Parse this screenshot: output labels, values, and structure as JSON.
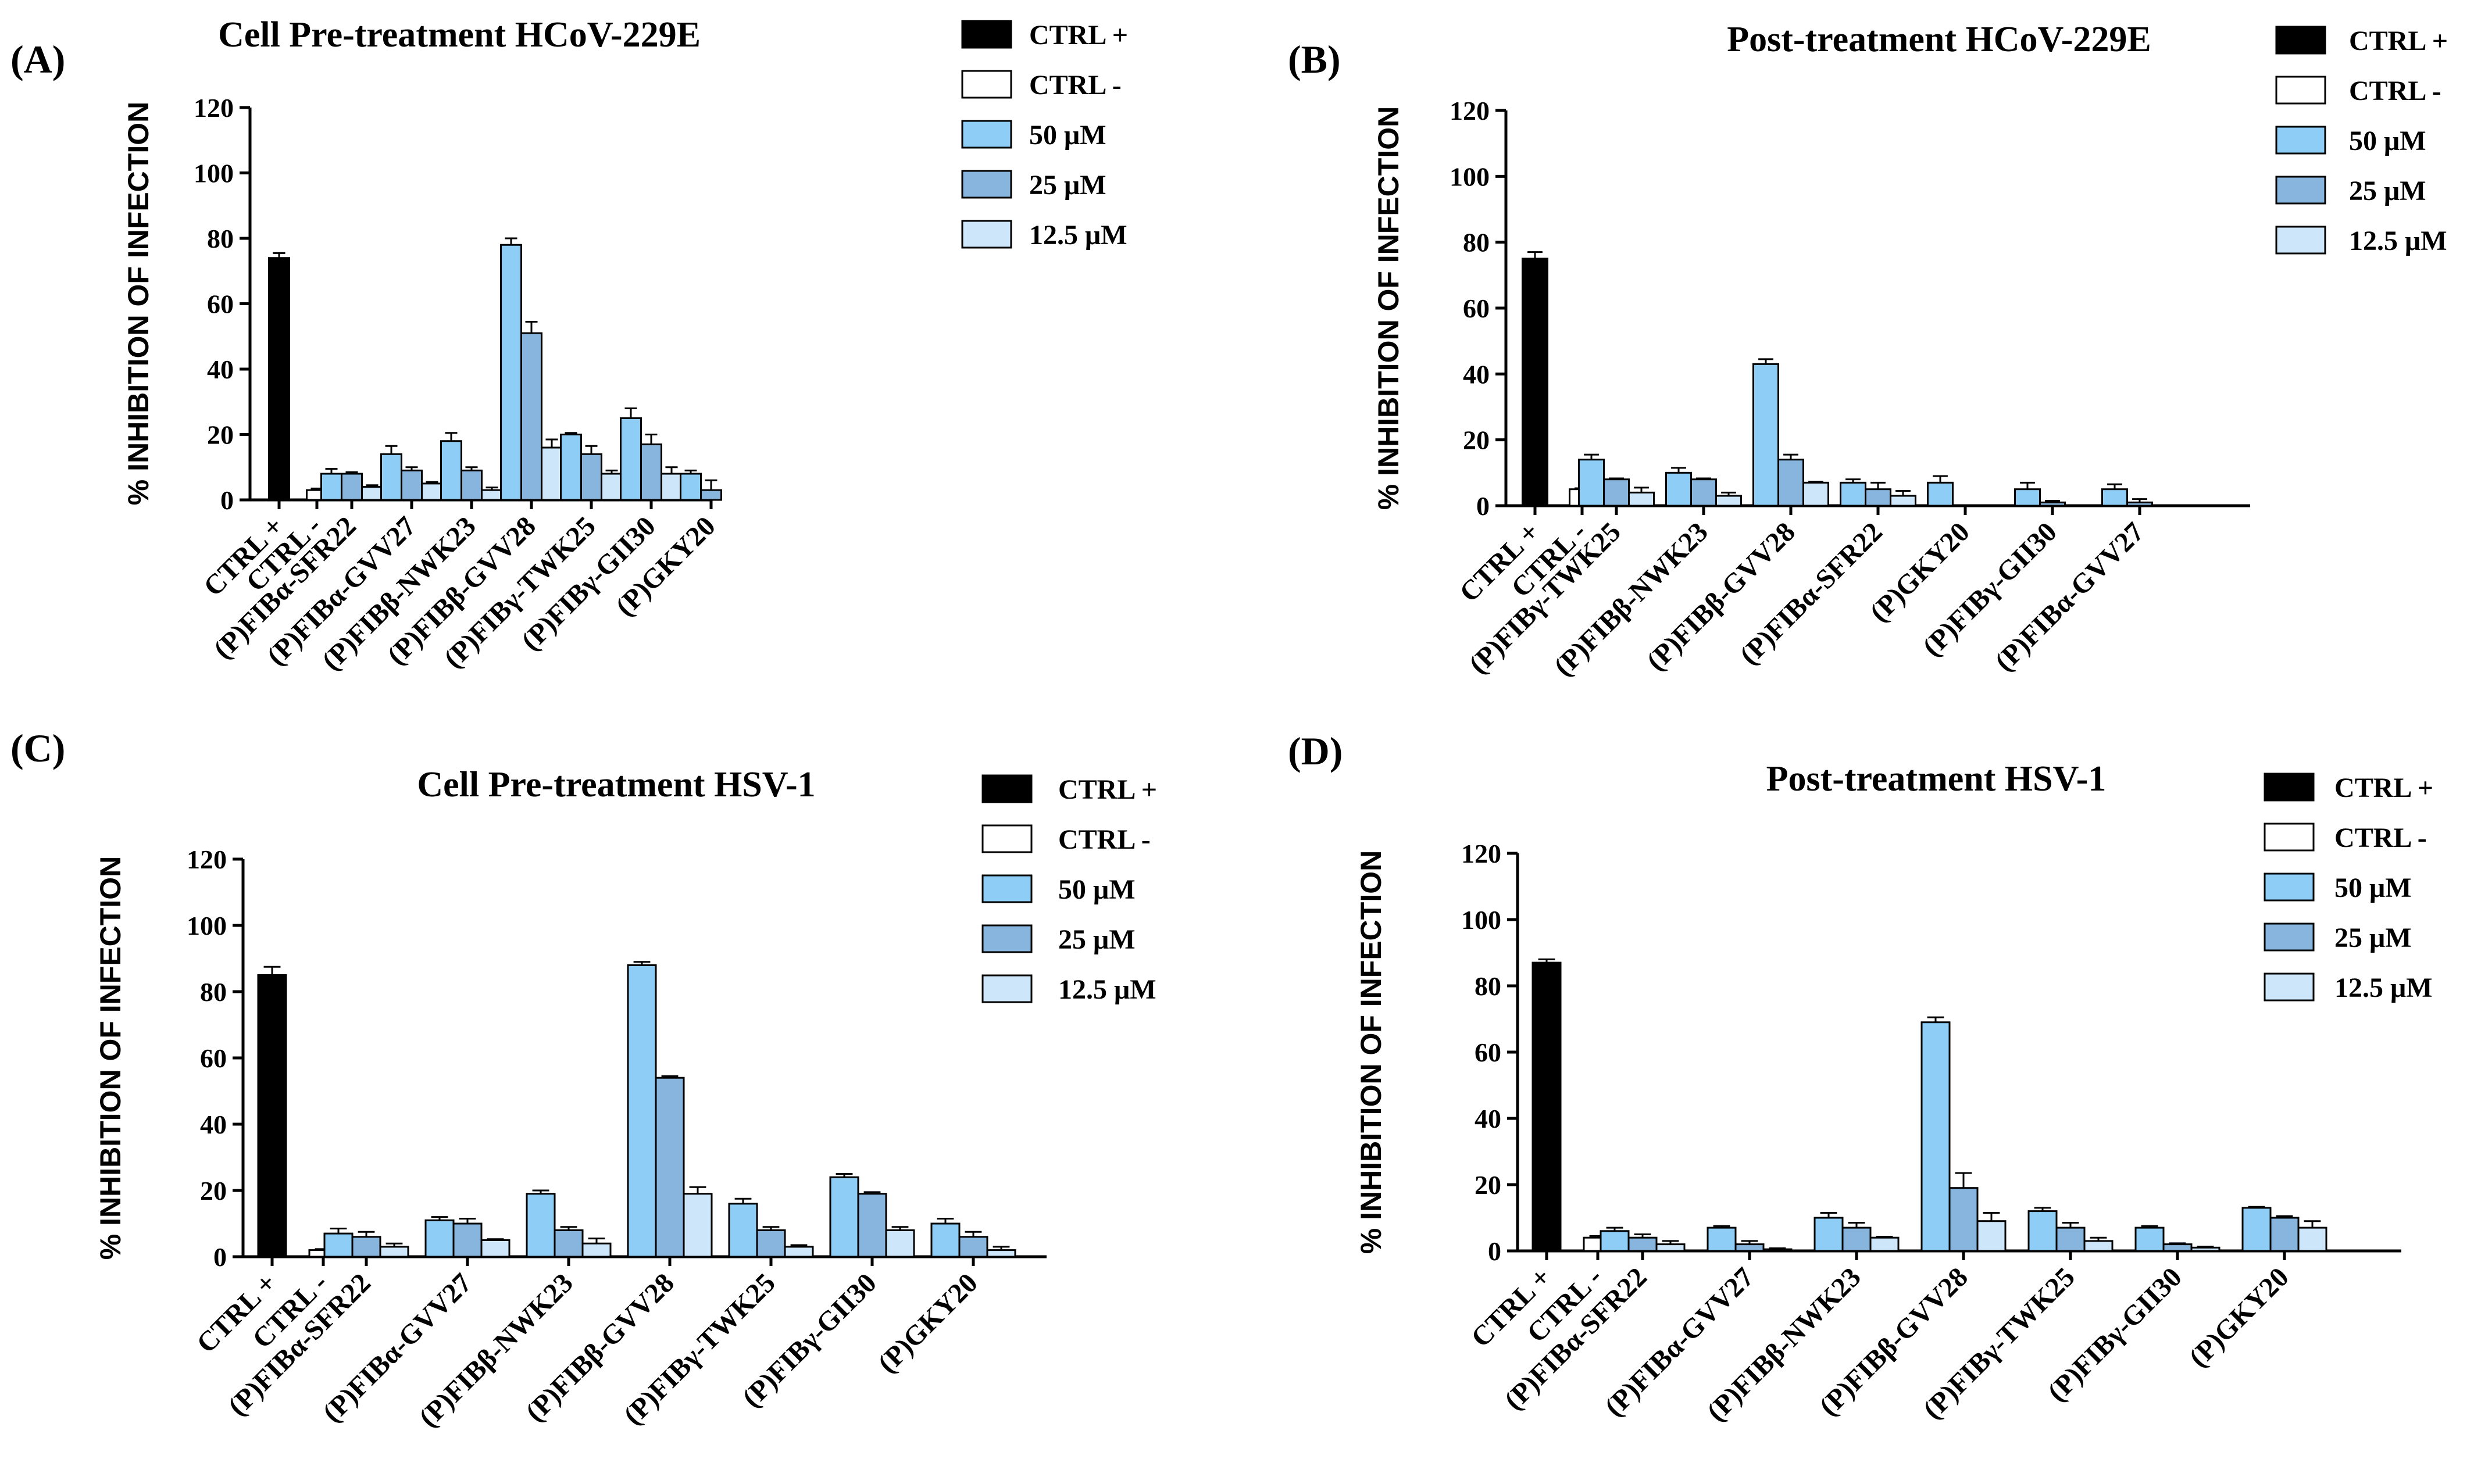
{
  "colors": {
    "ctrl_pos": "#000000",
    "ctrl_neg": "#ffffff",
    "c50": "#8dcdf6",
    "c25": "#87b5dd",
    "c125": "#cde6f9",
    "axis": "#000000"
  },
  "chart_data": [
    {
      "type": "bar",
      "panel": "(A)",
      "title": "Cell Pre-treatment HCoV-229E",
      "ylabel": "% INHIBITION OF INFECTION",
      "ylim": [
        0,
        120
      ],
      "yticks": [
        "0",
        "20",
        "40",
        "60",
        "80",
        "100",
        "120"
      ],
      "legend": [
        "CTRL +",
        "CTRL -",
        "50 μM",
        "25 μM",
        "12.5 μM"
      ],
      "controls": [
        {
          "name": "CTRL +",
          "value": 74,
          "err": 1.5
        },
        {
          "name": "CTRL -",
          "value": 3,
          "err": 0.5
        }
      ],
      "categories": [
        "(P)FIBα-SFR22",
        "(P)FIBα-GVV27",
        "(P)FIBβ-NWK23",
        "(P)FIBβ-GVV28",
        "(P)FIBγ-TWK25",
        "(P)FIBγ-GII30",
        "(P)GKY20"
      ],
      "series": [
        {
          "name": "50 μM",
          "values": [
            8,
            14,
            18,
            78,
            20,
            25,
            8
          ],
          "err": [
            1.5,
            2.5,
            2.5,
            2,
            0.5,
            3,
            1
          ]
        },
        {
          "name": "25 μM",
          "values": [
            8,
            9,
            9,
            51,
            14,
            17,
            3
          ],
          "err": [
            0.5,
            1,
            1,
            3.5,
            2.5,
            3,
            3
          ]
        },
        {
          "name": "12.5 μM",
          "values": [
            4,
            5,
            3,
            16,
            8,
            8,
            0
          ],
          "err": [
            0.5,
            0.5,
            0.8,
            2.5,
            1,
            2,
            0
          ]
        }
      ]
    },
    {
      "type": "bar",
      "panel": "(B)",
      "title": "Post-treatment HCoV-229E",
      "ylabel": "% INHIBITION OF INFECTION",
      "ylim": [
        0,
        120
      ],
      "yticks": [
        "0",
        "20",
        "40",
        "60",
        "80",
        "100",
        "120"
      ],
      "legend": [
        "CTRL +",
        "CTRL -",
        "50 μM",
        "25 μM",
        "12.5 μM"
      ],
      "controls": [
        {
          "name": "CTRL +",
          "value": 75,
          "err": 2
        },
        {
          "name": "CTRL -",
          "value": 5,
          "err": 0.3
        }
      ],
      "categories": [
        "(P)FIBγ-TWK25",
        "(P)FIBβ-NWK23",
        "(P)FIBβ-GVV28",
        "(P)FIBα-SFR22",
        "(P)GKY20",
        "(P)FIBγ-GII30",
        "(P)FIBα-GVV27"
      ],
      "series": [
        {
          "name": "50 μM",
          "values": [
            14,
            10,
            43,
            7,
            7,
            5,
            5
          ],
          "err": [
            1.5,
            1.5,
            1.5,
            1,
            2,
            2,
            1.5
          ]
        },
        {
          "name": "25 μM",
          "values": [
            8,
            8,
            14,
            5,
            0,
            1,
            1
          ],
          "err": [
            0.3,
            0.3,
            1.5,
            2,
            0,
            0.5,
            1
          ]
        },
        {
          "name": "12.5 μM",
          "values": [
            4,
            3,
            7,
            3,
            0,
            0,
            0
          ],
          "err": [
            1.5,
            1,
            0.3,
            1.5,
            0,
            0,
            0
          ]
        }
      ]
    },
    {
      "type": "bar",
      "panel": "(C)",
      "title": "Cell Pre-treatment HSV-1",
      "ylabel": "% INHIBITION OF INFECTION",
      "ylim": [
        0,
        120
      ],
      "yticks": [
        "0",
        "20",
        "40",
        "60",
        "80",
        "100",
        "120"
      ],
      "legend": [
        "CTRL +",
        "CTRL -",
        "50 μM",
        "25 μM",
        "12.5 μM"
      ],
      "controls": [
        {
          "name": "CTRL +",
          "value": 85,
          "err": 2.5
        },
        {
          "name": "CTRL -",
          "value": 2,
          "err": 0.3
        }
      ],
      "categories": [
        "(P)FIBα-SFR22",
        "(P)FIBα-GVV27",
        "(P)FIBβ-NWK23",
        "(P)FIBβ-GVV28",
        "(P)FIBγ-TWK25",
        "(P)FIBγ-GII30",
        "(P)GKY20"
      ],
      "series": [
        {
          "name": "50 μM",
          "values": [
            7,
            11,
            19,
            88,
            16,
            24,
            10
          ],
          "err": [
            1.5,
            1,
            1,
            1,
            1.5,
            1,
            1.5
          ]
        },
        {
          "name": "25 μM",
          "values": [
            6,
            10,
            8,
            54,
            8,
            19,
            6
          ],
          "err": [
            1.5,
            1.5,
            1,
            0.5,
            1,
            0.5,
            1.5
          ]
        },
        {
          "name": "12.5 μM",
          "values": [
            3,
            5,
            4,
            19,
            3,
            8,
            2
          ],
          "err": [
            1,
            0.3,
            1.5,
            2,
            0.5,
            1,
            1
          ]
        }
      ]
    },
    {
      "type": "bar",
      "panel": "(D)",
      "title": "Post-treatment HSV-1",
      "ylabel": "% INHIBITION OF INFECTION",
      "ylim": [
        0,
        120
      ],
      "yticks": [
        "0",
        "20",
        "40",
        "60",
        "80",
        "100",
        "120"
      ],
      "legend": [
        "CTRL +",
        "CTRL -",
        "50 μM",
        "25 μM",
        "12.5 μM"
      ],
      "controls": [
        {
          "name": "CTRL +",
          "value": 87,
          "err": 1
        },
        {
          "name": "CTRL -",
          "value": 4,
          "err": 0.5
        }
      ],
      "categories": [
        "(P)FIBα-SFR22",
        "(P)FIBα-GVV27",
        "(P)FIBβ-NWK23",
        "(P)FIBβ-GVV28",
        "(P)FIBγ-TWK25",
        "(P)FIBγ-GII30",
        "(P)GKY20"
      ],
      "series": [
        {
          "name": "50 μM",
          "values": [
            6,
            7,
            10,
            69,
            12,
            7,
            13
          ],
          "err": [
            1,
            0.5,
            1.5,
            1.5,
            1,
            0.5,
            0.3
          ]
        },
        {
          "name": "25 μM",
          "values": [
            4,
            2,
            7,
            19,
            7,
            2,
            10
          ],
          "err": [
            1,
            1,
            1.5,
            4.5,
            1.5,
            0.3,
            0.5
          ]
        },
        {
          "name": "12.5 μM",
          "values": [
            2,
            0.5,
            4,
            9,
            3,
            1,
            7
          ],
          "err": [
            1,
            0.3,
            0.3,
            2.5,
            1,
            0.3,
            2
          ]
        }
      ]
    }
  ]
}
